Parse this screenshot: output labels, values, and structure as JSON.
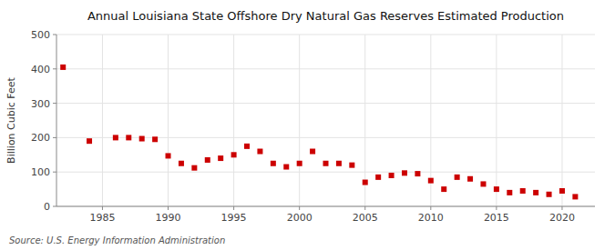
{
  "chart_data": {
    "type": "scatter",
    "title": "Annual Louisiana State Offshore Dry Natural Gas Reserves Estimated Production",
    "ylabel": "Billion Cubic Feet",
    "source": "Source: U.S. Energy Information Administration",
    "color": "#cc0000",
    "marker": "square",
    "grid": true,
    "xlim": [
      1981.5,
      2022.5
    ],
    "xticks": [
      1985,
      1990,
      1995,
      2000,
      2005,
      2010,
      2015,
      2020
    ],
    "ylim": [
      0,
      500
    ],
    "yticks": [
      0,
      100,
      200,
      300,
      400,
      500
    ],
    "x": [
      1982,
      1984,
      1986,
      1987,
      1988,
      1989,
      1990,
      1991,
      1992,
      1993,
      1994,
      1995,
      1996,
      1997,
      1998,
      1999,
      2000,
      2001,
      2002,
      2003,
      2004,
      2005,
      2006,
      2007,
      2008,
      2009,
      2010,
      2011,
      2012,
      2013,
      2014,
      2015,
      2016,
      2017,
      2018,
      2019,
      2020,
      2021
    ],
    "values": [
      405,
      190,
      200,
      200,
      197,
      195,
      147,
      125,
      112,
      135,
      140,
      150,
      175,
      160,
      125,
      115,
      125,
      160,
      125,
      125,
      120,
      70,
      85,
      90,
      97,
      95,
      75,
      50,
      85,
      80,
      65,
      50,
      40,
      45,
      40,
      35,
      45,
      28
    ]
  }
}
